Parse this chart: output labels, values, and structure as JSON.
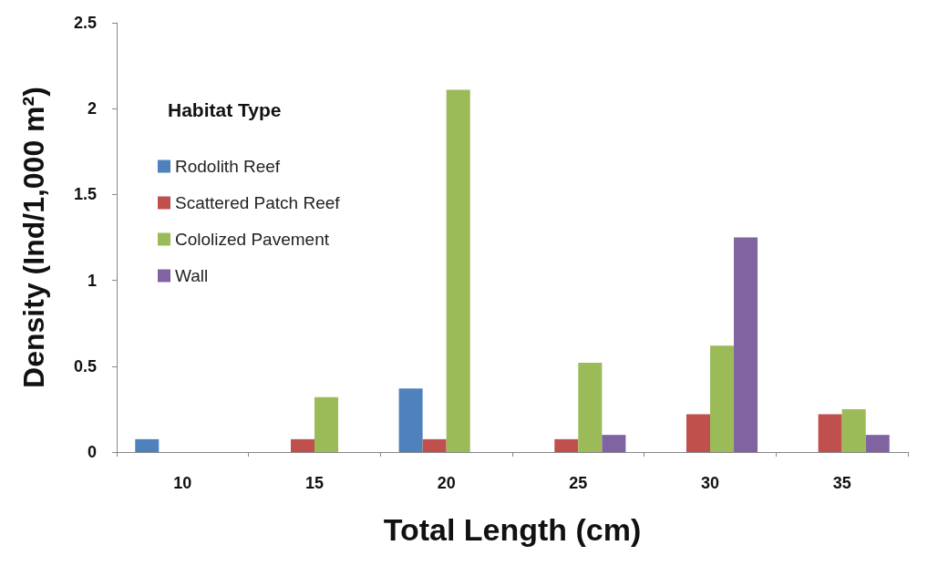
{
  "chart_data": {
    "type": "bar",
    "xlabel": "Total Length (cm)",
    "ylabel": "Density (Ind/1,000 m²)",
    "legend_title": "Habitat Type",
    "categories": [
      "10",
      "15",
      "20",
      "25",
      "30",
      "35"
    ],
    "series": [
      {
        "name": "Rodolith Reef",
        "color": "#4f81bd",
        "values": [
          0.075,
          0,
          0.37,
          0,
          0,
          0
        ]
      },
      {
        "name": "Scattered Patch Reef",
        "color": "#c0504d",
        "values": [
          0,
          0.075,
          0.075,
          0.075,
          0.22,
          0.22
        ]
      },
      {
        "name": "Cololized Pavement",
        "color": "#9bbb59",
        "values": [
          0,
          0.32,
          2.11,
          0.52,
          0.62,
          0.25
        ]
      },
      {
        "name": "Wall",
        "color": "#8064a2",
        "values": [
          0,
          0,
          0,
          0.1,
          1.25,
          0.1
        ]
      }
    ],
    "ylim": [
      0,
      2.5
    ],
    "yticks": [
      0,
      0.5,
      1,
      1.5,
      2,
      2.5
    ],
    "grid": false,
    "legend": "top left"
  }
}
